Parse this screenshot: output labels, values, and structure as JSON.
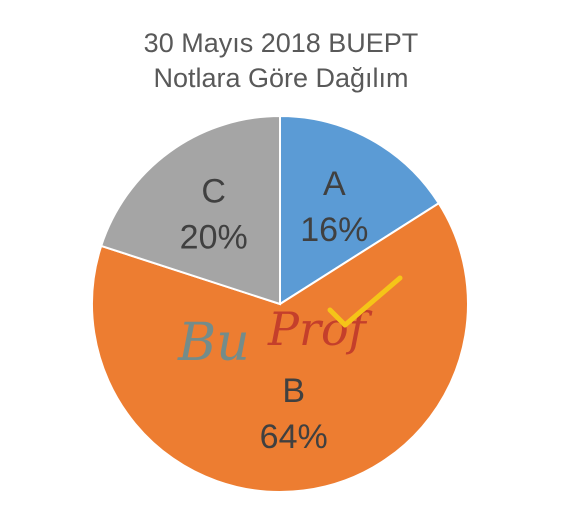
{
  "chart_data": {
    "type": "pie",
    "title": "30 Mayıs 2018 BUEPT",
    "subtitle": "Notlara Göre Dağılım",
    "categories": [
      "A",
      "B",
      "C"
    ],
    "values": [
      16,
      64,
      20
    ],
    "value_labels": [
      "16%",
      "64%",
      "20%"
    ],
    "colors": [
      "#5B9BD5",
      "#ED7D31",
      "#A5A5A5"
    ],
    "start_angle": "12 o'clock, clockwise",
    "legend": "none",
    "data_labels": "inside slices (category and percentage)"
  },
  "watermark": {
    "part1": "Bu",
    "part2": "Prof",
    "part1_color": "#5f8f9a",
    "part2_color": "#c0392b",
    "check_color": "#f5c518"
  }
}
